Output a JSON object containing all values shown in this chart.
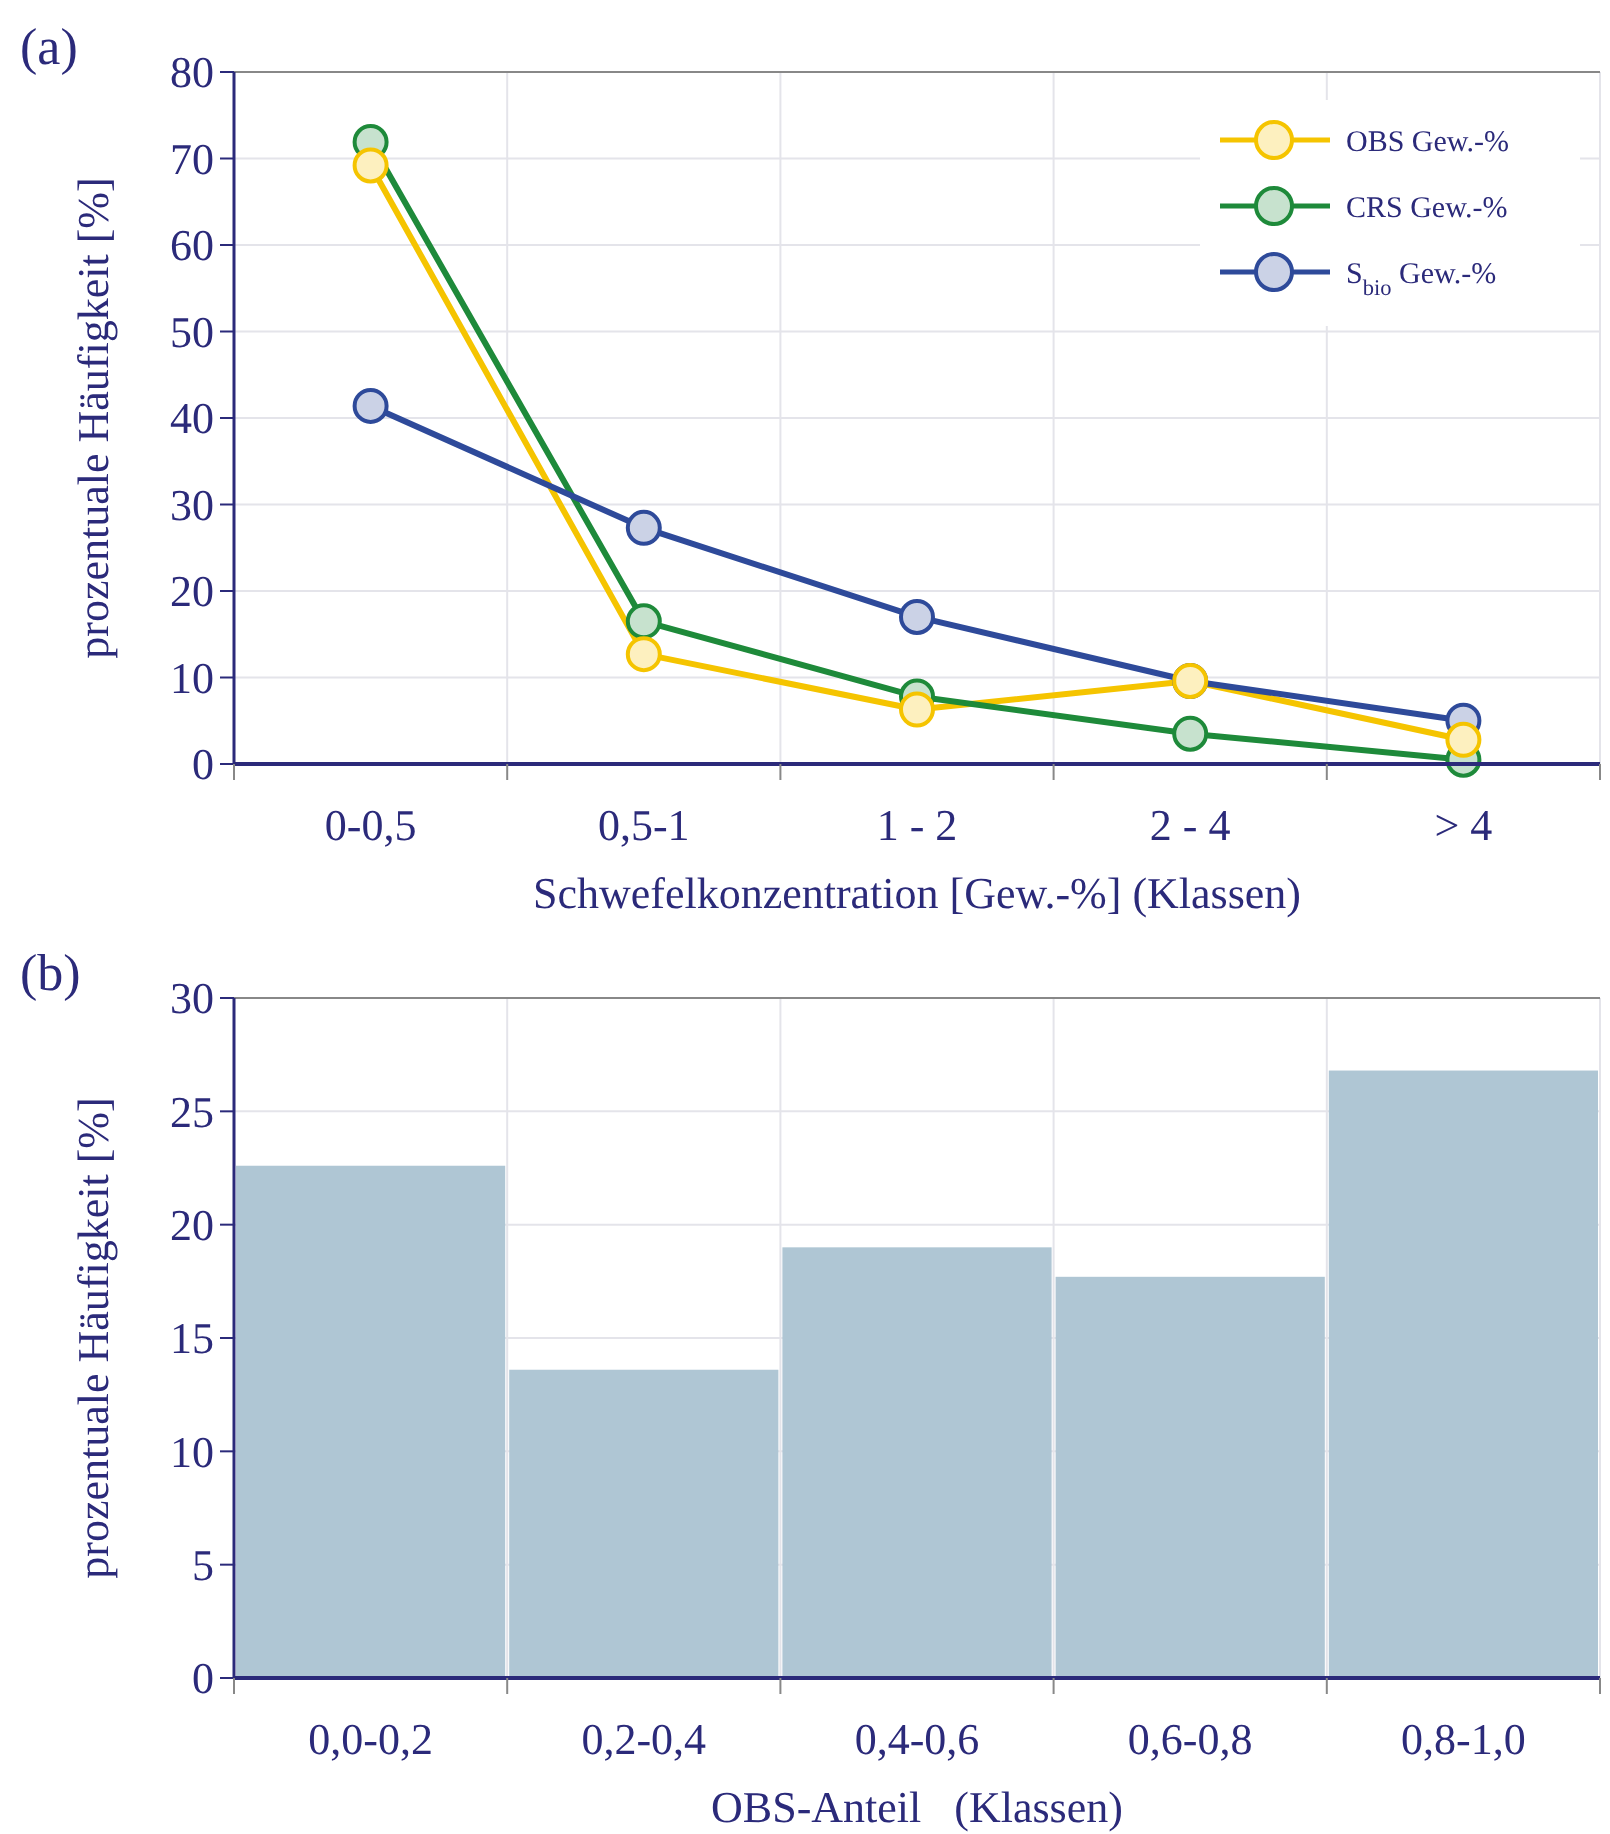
{
  "chart_data": [
    {
      "type": "line",
      "title": "(a)",
      "xlabel": "Schwefelkonzentration [Gew.-%] (Klassen)",
      "ylabel": "prozentuale Häufigkeit [%]",
      "categories": [
        "0-0,5",
        "0,5-1",
        "1 - 2",
        "2 - 4",
        "> 4"
      ],
      "series": [
        {
          "name": "OBS Gew.-%",
          "color": "#f5c400",
          "values": [
            69.2,
            12.7,
            6.3,
            9.6,
            2.8
          ]
        },
        {
          "name": "CRS Gew.-%",
          "color": "#1e8a3a",
          "values": [
            71.9,
            16.5,
            7.8,
            3.5,
            0.5
          ]
        },
        {
          "name": "S$_{bio}$ Gew.-%",
          "color": "#2e4a9a",
          "values": [
            41.4,
            27.3,
            17.0,
            9.6,
            5.0
          ]
        }
      ],
      "ylim": [
        0,
        80
      ],
      "yticks": [
        0,
        10,
        20,
        30,
        40,
        50,
        60,
        70,
        80
      ],
      "grid": true,
      "legend": "top right",
      "marker": "circle",
      "line_style": "solid"
    },
    {
      "type": "bar",
      "title": "(b)",
      "xlabel": "OBS-Anteil   (Klassen)",
      "ylabel": "prozentuale Häufigkeit [%]",
      "categories": [
        "0,0-0,2",
        "0,2-0,4",
        "0,4-0,6",
        "0,6-0,8",
        "0,8-1,0"
      ],
      "values": [
        22.6,
        13.6,
        19.0,
        17.7,
        26.8
      ],
      "color": "#afc6d4",
      "ylim": [
        0,
        30
      ],
      "yticks": [
        0,
        5,
        10,
        15,
        20,
        25,
        30
      ],
      "grid": true
    }
  ]
}
